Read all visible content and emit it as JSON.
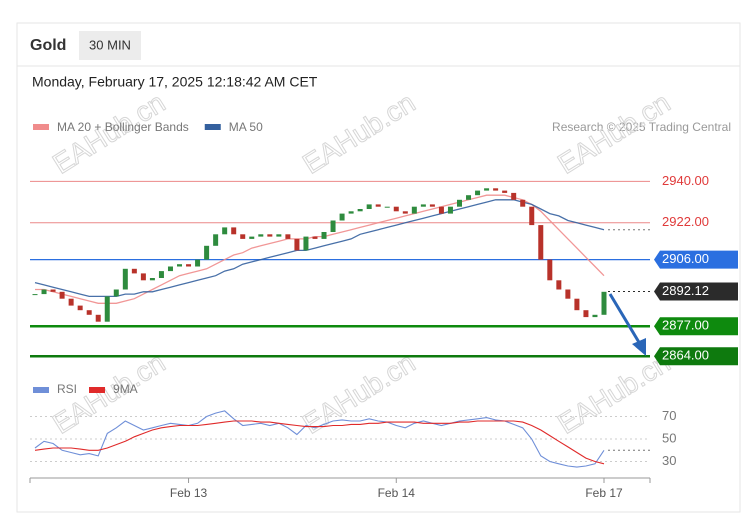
{
  "header": {
    "symbol": "Gold",
    "interval": "30 MIN",
    "timestamp": "Monday, February 17, 2025 12:18:42 AM CET"
  },
  "watermark": "EAHub.cn",
  "chart_data": {
    "type": "candlestick",
    "categories": [
      null,
      null,
      null,
      null,
      null,
      null,
      null,
      null,
      null,
      null,
      null,
      null,
      null,
      null,
      null,
      null,
      null,
      "Feb 13",
      null,
      null,
      null,
      null,
      null,
      null,
      null,
      null,
      null,
      null,
      null,
      null,
      null,
      null,
      null,
      null,
      null,
      null,
      null,
      null,
      null,
      null,
      "Feb 14",
      null,
      null,
      null,
      null,
      null,
      null,
      null,
      null,
      null,
      null,
      null,
      null,
      null,
      null,
      null,
      null,
      null,
      null,
      null,
      null,
      null,
      null,
      "Feb 17"
    ],
    "values": [
      2891,
      2893,
      2892,
      2889,
      2886,
      2884,
      2882,
      2879,
      2890,
      2893,
      2902,
      2900,
      2897,
      2898,
      2901,
      2903,
      2904,
      2903,
      2906,
      2912,
      2917,
      2920,
      2917,
      2915,
      2916,
      2917,
      2916,
      2917,
      2915,
      2910,
      2916,
      2915,
      2918,
      2923,
      2926,
      2927,
      2928,
      2930,
      2929,
      2929,
      2927,
      2926,
      2929,
      2930,
      2929,
      2926,
      2929,
      2932,
      2934,
      2936,
      2937,
      2936,
      2935,
      2932,
      2929,
      2921,
      2906,
      2897,
      2893,
      2889,
      2884,
      2881,
      2882,
      2892
    ],
    "up_color": "#2e8b3e",
    "down_color": "#b8322a",
    "ylim": [
      2858,
      2958
    ],
    "series": [
      {
        "name": "MA 20 + Bollinger Bands",
        "color": "#f08c8c",
        "values": [
          2893,
          2893,
          2892,
          2891,
          2890,
          2889,
          2888,
          2887,
          2887,
          2887,
          2888,
          2889,
          2891,
          2893,
          2895,
          2897,
          2899,
          2900,
          2901,
          2902,
          2904,
          2906,
          2908,
          2909,
          2911,
          2912,
          2913,
          2914,
          2915,
          2915,
          2915,
          2916,
          2916,
          2917,
          2918,
          2919,
          2920,
          2921,
          2922,
          2923,
          2924,
          2925,
          2926,
          2927,
          2928,
          2929,
          2930,
          2931,
          2932,
          2933,
          2934,
          2934,
          2934,
          2933,
          2932,
          2930,
          2927,
          2923,
          2919,
          2915,
          2911,
          2907,
          2903,
          2899
        ]
      },
      {
        "name": "MA 50",
        "color": "#34609e",
        "values": [
          2896,
          2895,
          2894,
          2893,
          2892,
          2891,
          2890,
          2890,
          2890,
          2890,
          2891,
          2891,
          2892,
          2892,
          2893,
          2894,
          2895,
          2896,
          2897,
          2898,
          2899,
          2901,
          2902,
          2904,
          2905,
          2906,
          2907,
          2908,
          2909,
          2910,
          2910,
          2911,
          2912,
          2913,
          2914,
          2915,
          2917,
          2918,
          2919,
          2920,
          2921,
          2922,
          2923,
          2924,
          2925,
          2926,
          2927,
          2928,
          2929,
          2930,
          2931,
          2932,
          2932,
          2932,
          2931,
          2930,
          2928,
          2926,
          2925,
          2923,
          2922,
          2921,
          2920,
          2919
        ]
      }
    ],
    "levels": [
      {
        "value": 2940,
        "label": "2940.00",
        "color": "#e03a3a",
        "boxed": false,
        "width": 1,
        "dashed": false
      },
      {
        "value": 2922,
        "label": "2922.00",
        "color": "#e03a3a",
        "boxed": false,
        "width": 1,
        "dashed": false
      },
      {
        "value": 2906,
        "label": "2906.00",
        "color": "#2b6fe0",
        "boxed": true,
        "width": 1.2,
        "dashed": false
      },
      {
        "value": 2892.12,
        "label": "2892.12",
        "color": "#2b2b2b",
        "boxed": true,
        "width": 1,
        "dashed": true
      },
      {
        "value": 2877,
        "label": "2877.00",
        "color": "#0e8a0e",
        "boxed": true,
        "width": 2.5,
        "dashed": false
      },
      {
        "value": 2864,
        "label": "2864.00",
        "color": "#0e7a0e",
        "boxed": true,
        "width": 2.5,
        "dashed": false
      }
    ],
    "credit": "Research © 2025 Trading Central",
    "rsi": {
      "ylim": [
        18,
        98
      ],
      "yticks": [
        70,
        50,
        30
      ],
      "series": [
        {
          "name": "RSI",
          "color": "#6f8fd8",
          "values": [
            42,
            48,
            46,
            40,
            38,
            36,
            37,
            35,
            55,
            60,
            66,
            62,
            58,
            60,
            62,
            64,
            63,
            62,
            64,
            70,
            73,
            75,
            68,
            62,
            63,
            64,
            62,
            64,
            60,
            54,
            62,
            60,
            63,
            66,
            67,
            66,
            66,
            68,
            66,
            65,
            62,
            60,
            64,
            66,
            64,
            62,
            64,
            66,
            67,
            68,
            69,
            67,
            66,
            63,
            60,
            50,
            35,
            30,
            28,
            26,
            25,
            26,
            28,
            40
          ]
        },
        {
          "name": "9MA",
          "color": "#e02a2a",
          "values": [
            40,
            41,
            42,
            42,
            42,
            41,
            40,
            40,
            42,
            45,
            48,
            52,
            55,
            58,
            60,
            61,
            62,
            62,
            62,
            63,
            64,
            65,
            66,
            66,
            66,
            65,
            65,
            64,
            63,
            62,
            61,
            61,
            61,
            62,
            62,
            63,
            63,
            64,
            64,
            65,
            65,
            65,
            65,
            64,
            64,
            64,
            64,
            65,
            65,
            66,
            66,
            66,
            66,
            66,
            65,
            62,
            58,
            53,
            48,
            43,
            38,
            33,
            30,
            28
          ]
        }
      ]
    }
  }
}
